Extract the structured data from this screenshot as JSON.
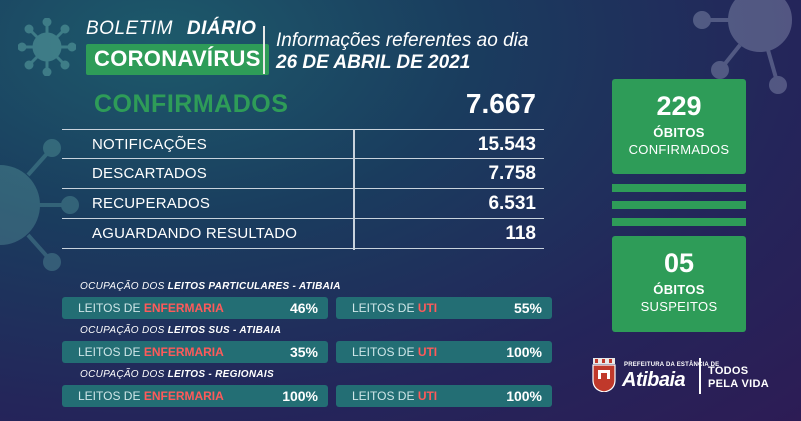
{
  "header": {
    "boletim": "BOLETIM",
    "diario": "DIÁRIO",
    "coronavirus": "CORONAVÍRUS",
    "info_line": "Informações referentes ao dia",
    "date": "26 DE ABRIL DE 2021"
  },
  "confirmados": {
    "label": "CONFIRMADOS",
    "value": "7.667"
  },
  "stats": [
    {
      "label": "NOTIFICAÇÕES",
      "value": "15.543"
    },
    {
      "label": "DESCARTADOS",
      "value": "7.758"
    },
    {
      "label": "RECUPERADOS",
      "value": "6.531"
    },
    {
      "label": "AGUARDANDO RESULTADO",
      "value": "118"
    }
  ],
  "leitos": {
    "sections": [
      {
        "title_prefix": "OCUPAÇÃO DOS ",
        "title_bold": "LEITOS PARTICULARES - ATIBAIA",
        "enfermaria_prefix": "LEITOS DE ",
        "enfermaria_em": "ENFERMARIA",
        "enfermaria_pct": "46%",
        "uti_prefix": "LEITOS DE ",
        "uti_em": "UTI",
        "uti_pct": "55%"
      },
      {
        "title_prefix": "OCUPAÇÃO DOS ",
        "title_bold": "LEITOS SUS - ATIBAIA",
        "enfermaria_prefix": "LEITOS DE ",
        "enfermaria_em": "ENFERMARIA",
        "enfermaria_pct": "35%",
        "uti_prefix": "LEITOS DE ",
        "uti_em": "UTI",
        "uti_pct": "100%"
      },
      {
        "title_prefix": "OCUPAÇÃO DOS ",
        "title_bold": "LEITOS - REGIONAIS",
        "enfermaria_prefix": "LEITOS DE ",
        "enfermaria_em": "ENFERMARIA",
        "enfermaria_pct": "100%",
        "uti_prefix": "LEITOS DE ",
        "uti_em": "UTI",
        "uti_pct": "100%"
      }
    ]
  },
  "obitos_confirmados": {
    "number": "229",
    "line1": "ÓBITOS",
    "line2": "CONFIRMADOS"
  },
  "obitos_suspeitos": {
    "number": "05",
    "line1": "ÓBITOS",
    "line2": "SUSPEITOS"
  },
  "logo": {
    "pref_small": "PREFEITURA DA ESTÂNCIA DE",
    "pref_name": "Atibaia",
    "slogan_1": "TODOS",
    "slogan_2": "PELA VIDA"
  },
  "colors": {
    "accent_green": "#2e9c58",
    "pill_teal": "#236e74",
    "highlight_red": "#ff5a5a"
  },
  "icons": [
    "virus-icon",
    "crest-icon"
  ]
}
